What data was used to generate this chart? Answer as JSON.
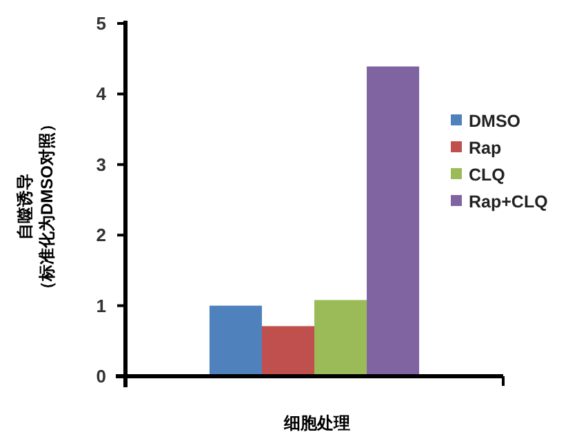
{
  "chart_data": {
    "type": "bar",
    "ylabel": "自噬诱导（标准化为DMSO对照）",
    "xlabel": "细胞处理",
    "categories": [
      null
    ],
    "series": [
      {
        "name": "DMSO",
        "color": "#4f81bd",
        "values": [
          1.0
        ]
      },
      {
        "name": "Rap",
        "color": "#c0504d",
        "values": [
          0.71
        ]
      },
      {
        "name": "CLQ",
        "color": "#9bbb59",
        "values": [
          1.08
        ]
      },
      {
        "name": "Rap+CLQ",
        "color": "#8064a2",
        "values": [
          4.39
        ]
      }
    ],
    "ylim": [
      0,
      5
    ],
    "yticks": [
      0,
      1,
      2,
      3,
      4,
      5
    ],
    "legend": "right"
  }
}
